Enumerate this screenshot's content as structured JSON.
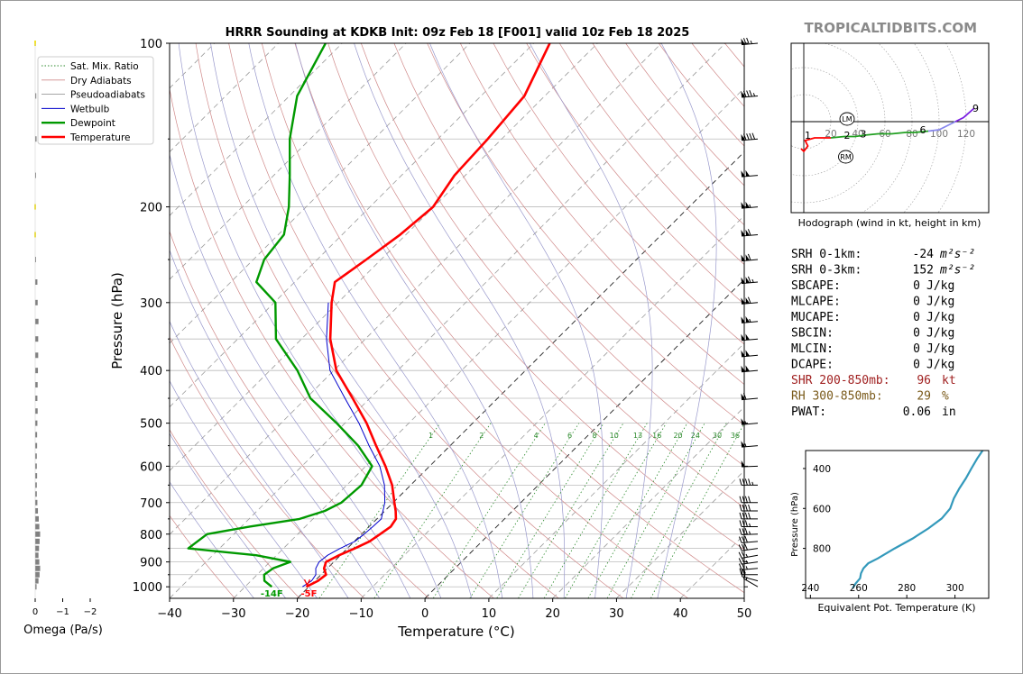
{
  "page": {
    "title": "HRRR Sounding at KDKB Init: 09z Feb 18 [F001] valid 10z Feb 18 2025",
    "site_brand": "TROPICALTIDBITS.COM"
  },
  "colors": {
    "temperature": "#ff0000",
    "dewpoint": "#009900",
    "wetbulb": "#0000cc",
    "dry_adiabat": "#d08a8a",
    "pseudoadiabat": "#9999cc",
    "mixing_ratio": "#2e8b2e",
    "hodograph_red": "#ff0000",
    "hodograph_green": "#22a022",
    "hodograph_gray": "#8888ee",
    "hodograph_purple": "#7a1fe0",
    "theta_e": "#3399bb",
    "shr": "#a02020",
    "rh": "#7a5a1a",
    "brand": "#8a8a8a"
  },
  "chart_data": [
    {
      "id": "skewt",
      "type": "line",
      "xlabel": "Temperature (°C)",
      "ylabel": "Pressure (hPa)",
      "xlim": [
        -40,
        50
      ],
      "ylim": [
        1050,
        100
      ],
      "y_scale": "log",
      "skew": "45-degree isotherms",
      "x_ticks": [
        "−40",
        "−30",
        "−20",
        "−10",
        "0",
        "10",
        "20",
        "30",
        "40",
        "50"
      ],
      "x_tick_values": [
        -40,
        -30,
        -20,
        -10,
        0,
        10,
        20,
        30,
        40,
        50
      ],
      "y_ticks": [
        "100",
        "200",
        "300",
        "400",
        "500",
        "600",
        "700",
        "800",
        "900",
        "1000"
      ],
      "y_tick_values": [
        100,
        200,
        300,
        400,
        500,
        600,
        700,
        800,
        900,
        1000
      ],
      "legend": {
        "placement": "top-left",
        "entries": [
          "Sat. Mix. Ratio",
          "Dry Adiabats",
          "Pseudoadiabats",
          "Wetbulb",
          "Dewpoint",
          "Temperature"
        ]
      },
      "mixing_ratio_labels": [
        "1",
        "2",
        "4",
        "6",
        "8",
        "10",
        "13",
        "16",
        "20",
        "24",
        "30",
        "36"
      ],
      "mixing_ratio_values": [
        1,
        2,
        4,
        6,
        8,
        10,
        13,
        16,
        20,
        24,
        30,
        36
      ],
      "surface_temperature_label": "-5F",
      "surface_dewpoint_label": "-14F",
      "series": [
        {
          "name": "Temperature",
          "pressure": [
            1000,
            975,
            950,
            925,
            900,
            875,
            850,
            825,
            800,
            775,
            750,
            725,
            700,
            650,
            600,
            550,
            500,
            450,
            400,
            350,
            300,
            275,
            250,
            225,
            200,
            175,
            150,
            125,
            100
          ],
          "values": [
            -20.4,
            -19.5,
            -19.2,
            -20.5,
            -21.2,
            -20.2,
            -18.8,
            -17.6,
            -17.1,
            -16.6,
            -17.0,
            -18.3,
            -19.8,
            -22.9,
            -26.9,
            -31.6,
            -36.6,
            -42.7,
            -49.6,
            -55.5,
            -61.0,
            -63.7,
            -62.3,
            -60.9,
            -60.1,
            -61.7,
            -62.2,
            -63.2,
            -67.5
          ]
        },
        {
          "name": "Dewpoint",
          "pressure": [
            1000,
            975,
            950,
            925,
            900,
            875,
            850,
            800,
            775,
            750,
            725,
            700,
            650,
            600,
            550,
            500,
            450,
            400,
            350,
            300,
            275,
            250,
            225,
            200,
            175,
            150,
            125,
            100
          ],
          "values": [
            -25.8,
            -27.9,
            -28.9,
            -28.5,
            -26.8,
            -33.2,
            -44.9,
            -44.2,
            -38.7,
            -32.1,
            -29.4,
            -28.1,
            -27.7,
            -29.0,
            -34.4,
            -41.3,
            -49.3,
            -55.7,
            -64.0,
            -69.8,
            -76.0,
            -78.3,
            -79.1,
            -82.7,
            -87.5,
            -93.2,
            -98.8,
            -102.6
          ]
        },
        {
          "name": "Wetbulb",
          "pressure": [
            1000,
            975,
            950,
            925,
            900,
            875,
            850,
            825,
            800,
            775,
            750,
            725,
            700,
            650,
            600,
            550,
            500,
            450,
            400,
            350,
            300
          ],
          "values": [
            -21.0,
            -20.5,
            -20.8,
            -21.8,
            -22.3,
            -22.0,
            -21.1,
            -19.9,
            -19.6,
            -19.4,
            -19.3,
            -20.3,
            -21.3,
            -24.1,
            -27.8,
            -32.7,
            -37.8,
            -43.9,
            -50.6,
            -56.1,
            -61.5
          ]
        }
      ]
    },
    {
      "id": "hodograph",
      "type": "line",
      "caption": "Hodograph (wind in kt, height in km)",
      "ring_labels": [
        "20",
        "40",
        "60",
        "80",
        "100",
        "120"
      ],
      "ring_values": [
        20,
        40,
        60,
        80,
        100,
        120
      ],
      "height_labels": [
        "1",
        "2",
        "3",
        "6",
        "9"
      ],
      "storm_motion_labels": [
        "LM",
        "RM"
      ],
      "storm_motion_u": [
        32,
        31
      ],
      "storm_motion_v": [
        2,
        -26
      ],
      "u": [
        -2,
        0,
        3,
        1,
        8,
        20,
        30,
        38,
        45,
        55,
        65,
        75,
        82,
        92,
        100,
        106,
        112,
        118,
        126
      ],
      "v": [
        -20,
        -22,
        -18,
        -14,
        -12,
        -12,
        -11,
        -11,
        -10,
        -9,
        -9,
        -8,
        -8,
        -7,
        -6,
        -3,
        0,
        3,
        10
      ],
      "height_km_at_labels": [
        1,
        2,
        3,
        6,
        9
      ],
      "height_label_u": [
        3,
        32,
        44,
        88,
        127
      ],
      "height_label_v": [
        -10,
        -10,
        -9,
        -6,
        10
      ]
    },
    {
      "id": "theta_e",
      "type": "line",
      "xlabel": "Equivalent Pot. Temperature (K)",
      "ylabel": "Pressure (hPa)",
      "xlim": [
        238,
        314
      ],
      "ylim": [
        1050,
        310
      ],
      "x_ticks": [
        "240",
        "260",
        "280",
        "300"
      ],
      "x_tick_values": [
        240,
        260,
        280,
        300
      ],
      "y_ticks": [
        "400",
        "600",
        "800"
      ],
      "y_tick_values": [
        400,
        600,
        800
      ],
      "series": [
        {
          "name": "Theta-E",
          "pressure": [
            1000,
            975,
            950,
            925,
            900,
            875,
            850,
            800,
            750,
            700,
            650,
            600,
            550,
            500,
            450,
            400,
            350,
            300
          ],
          "values": [
            257.5,
            258.8,
            260.6,
            261.0,
            262.0,
            264.0,
            268.0,
            275.0,
            282.5,
            289.0,
            294.5,
            298.0,
            299.5,
            301.8,
            304.5,
            306.8,
            309.2,
            312.0
          ]
        }
      ]
    },
    {
      "id": "omega",
      "type": "bar",
      "xlabel": "Omega (Pa/s)",
      "x_ticks": [
        "0",
        "−1",
        "−2"
      ],
      "x_tick_values": [
        0,
        -1,
        -2
      ],
      "xlim": [
        0.2,
        -2.8
      ],
      "pressure": [
        1000,
        975,
        950,
        925,
        900,
        875,
        850,
        825,
        800,
        775,
        750,
        725,
        700,
        675,
        650,
        625,
        600,
        575,
        550,
        525,
        500,
        475,
        450,
        425,
        400,
        375,
        350,
        325,
        300,
        275,
        250,
        225,
        200,
        175,
        150,
        125,
        100
      ],
      "values": [
        -0.05,
        -0.12,
        -0.16,
        -0.18,
        -0.15,
        -0.12,
        -0.14,
        -0.16,
        -0.18,
        -0.15,
        -0.13,
        -0.1,
        -0.08,
        -0.06,
        -0.06,
        -0.07,
        -0.06,
        -0.06,
        -0.07,
        -0.07,
        -0.08,
        -0.09,
        -0.08,
        -0.09,
        -0.1,
        -0.11,
        -0.11,
        -0.12,
        -0.09,
        -0.08,
        -0.03,
        0.0,
        0.0,
        0.0,
        -0.05,
        -0.04,
        0.0
      ],
      "bar_colors_note": "gray; yellow where marked",
      "highlight_pressures": [
        100,
        200,
        225
      ]
    }
  ],
  "wind_barbs": {
    "pressure": [
      1000,
      975,
      950,
      925,
      900,
      875,
      850,
      825,
      800,
      775,
      750,
      725,
      700,
      650,
      600,
      550,
      500,
      450,
      400,
      375,
      350,
      325,
      300,
      275,
      250,
      225,
      200,
      175,
      150,
      125,
      100
    ],
    "speed_kt": [
      15,
      20,
      20,
      25,
      25,
      25,
      30,
      30,
      35,
      35,
      40,
      40,
      40,
      45,
      50,
      55,
      55,
      60,
      100,
      100,
      100,
      105,
      110,
      115,
      110,
      110,
      105,
      100,
      90,
      85,
      75
    ],
    "direction_deg": [
      300,
      285,
      270,
      265,
      262,
      260,
      262,
      265,
      268,
      270,
      270,
      270,
      270,
      270,
      268,
      265,
      265,
      265,
      265,
      265,
      265,
      265,
      265,
      265,
      265,
      265,
      265,
      265,
      265,
      265,
      265
    ]
  },
  "indices": [
    {
      "label": "SRH 0-1km:",
      "value": "-24",
      "unit_html": "m²s⁻²",
      "unit": "m2s-2",
      "color": "#000000"
    },
    {
      "label": "SRH 0-3km:",
      "value": "152",
      "unit_html": "m²s⁻²",
      "unit": "m2s-2",
      "color": "#000000"
    },
    {
      "label": "SBCAPE:",
      "value": "0",
      "unit": "J/kg",
      "color": "#000000"
    },
    {
      "label": "MLCAPE:",
      "value": "0",
      "unit": "J/kg",
      "color": "#000000"
    },
    {
      "label": "MUCAPE:",
      "value": "0",
      "unit": "J/kg",
      "color": "#000000"
    },
    {
      "label": "SBCIN:",
      "value": "0",
      "unit": "J/kg",
      "color": "#000000"
    },
    {
      "label": "MLCIN:",
      "value": "0",
      "unit": "J/kg",
      "color": "#000000"
    },
    {
      "label": "DCAPE:",
      "value": "0",
      "unit": "J/kg",
      "color": "#000000"
    },
    {
      "label": "SHR 200-850mb:",
      "value": "96",
      "unit": "kt",
      "color": "#a02020"
    },
    {
      "label": "RH 300-850mb:",
      "value": "29",
      "unit": "%",
      "color": "#7a5a1a"
    },
    {
      "label": "PWAT:",
      "value": "0.06",
      "unit": "in",
      "color": "#000000"
    }
  ]
}
